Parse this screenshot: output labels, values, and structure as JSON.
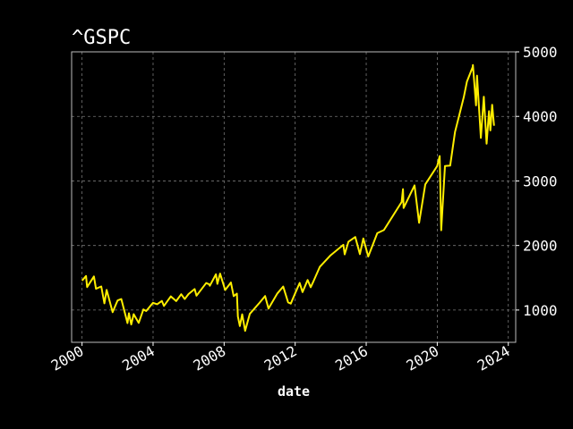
{
  "chart_data": {
    "type": "line",
    "title": "^GSPC",
    "xlabel": "date",
    "ylabel": "",
    "x_axis": "date",
    "xlim": [
      "1999-06-01",
      "2024-06-01"
    ],
    "ylim": [
      500,
      5000
    ],
    "xticks": [
      "2000",
      "2004",
      "2008",
      "2012",
      "2016",
      "2020",
      "2024"
    ],
    "yticks": [
      "1000",
      "2000",
      "3000",
      "4000",
      "5000"
    ],
    "y_axis_side": "right",
    "grid": true,
    "legend": "none",
    "line_color": "#ffee00",
    "background_color": "#000000",
    "series": [
      {
        "x": [
          "2000-01-03",
          "2000-03-24",
          "2000-04-14",
          "2000-09-01",
          "2000-10-13",
          "2001-01-31",
          "2001-04-04",
          "2001-05-21",
          "2001-09-21",
          "2001-12-31",
          "2002-03-19",
          "2002-07-23",
          "2002-08-22",
          "2002-10-09",
          "2002-11-27",
          "2003-03-11",
          "2003-06-17",
          "2003-08-12",
          "2003-12-31",
          "2004-03-24",
          "2004-06-30",
          "2004-08-12",
          "2004-12-31",
          "2005-04-20",
          "2005-08-01",
          "2005-10-12",
          "2005-12-30",
          "2006-05-05",
          "2006-06-13",
          "2006-12-29",
          "2007-02-27",
          "2007-03-14",
          "2007-07-16",
          "2007-08-16",
          "2007-10-09",
          "2008-01-22",
          "2008-05-19",
          "2008-07-15",
          "2008-09-19",
          "2008-10-10",
          "2008-11-20",
          "2009-01-06",
          "2009-03-09",
          "2009-06-12",
          "2009-12-31",
          "2010-04-23",
          "2010-07-02",
          "2010-12-31",
          "2011-04-29",
          "2011-08-08",
          "2011-10-03",
          "2011-12-30",
          "2012-04-02",
          "2012-06-01",
          "2012-09-14",
          "2012-11-15",
          "2012-12-31",
          "2013-05-21",
          "2013-12-31",
          "2014-09-18",
          "2014-10-15",
          "2014-12-31",
          "2015-05-21",
          "2015-08-25",
          "2015-11-03",
          "2016-02-11",
          "2016-08-15",
          "2016-12-30",
          "2017-12-29",
          "2018-01-26",
          "2018-02-08",
          "2018-09-20",
          "2018-12-24",
          "2019-04-30",
          "2019-12-31",
          "2020-02-19",
          "2020-03-23",
          "2020-06-08",
          "2020-09-23",
          "2020-12-31",
          "2021-06-30",
          "2021-09-02",
          "2021-12-31",
          "2022-01-03",
          "2022-03-08",
          "2022-03-29",
          "2022-06-16",
          "2022-08-16",
          "2022-10-12",
          "2022-12-01",
          "2022-12-28",
          "2023-02-02",
          "2023-03-13"
        ],
        "y": [
          1455,
          1527,
          1356,
          1520,
          1330,
          1366,
          1103,
          1312,
          966,
          1148,
          1170,
          798,
          950,
          777,
          936,
          800,
          1010,
          985,
          1112,
          1090,
          1141,
          1064,
          1212,
          1138,
          1245,
          1170,
          1248,
          1325,
          1223,
          1418,
          1399,
          1377,
          1553,
          1406,
          1565,
          1310,
          1426,
          1215,
          1255,
          899,
          752,
          934,
          677,
          940,
          1115,
          1217,
          1022,
          1258,
          1364,
          1119,
          1099,
          1258,
          1419,
          1278,
          1465,
          1353,
          1426,
          1669,
          1848,
          2011,
          1862,
          2059,
          2131,
          1867,
          2109,
          1829,
          2190,
          2239,
          2674,
          2873,
          2581,
          2931,
          2351,
          2946,
          3231,
          3386,
          2237,
          3232,
          3237,
          3756,
          4297,
          4537,
          4766,
          4796,
          4170,
          4631,
          3667,
          4305,
          3577,
          4080,
          3783,
          4179,
          3855
        ]
      }
    ]
  }
}
